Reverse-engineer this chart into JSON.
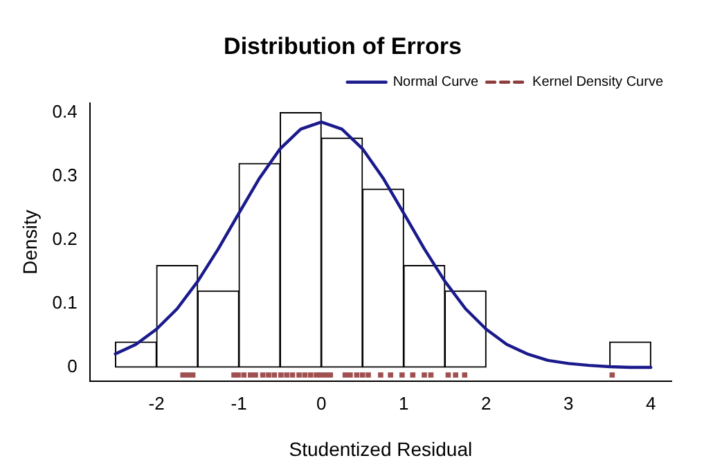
{
  "chart_data": {
    "type": "histogram",
    "title": "Distribution of Errors",
    "xlabel": "Studentized Residual",
    "ylabel": "Density",
    "bins": [
      -2.5,
      -2,
      -1.5,
      -1,
      -0.5,
      0,
      0.5,
      1,
      1.5,
      2,
      2.5,
      3,
      3.5,
      4
    ],
    "values": [
      0.04,
      0.16,
      0.12,
      0.32,
      0.4,
      0.36,
      0.28,
      0.16,
      0.12,
      0,
      0,
      0,
      0.04
    ],
    "color": "#ffffff",
    "series": [
      {
        "name": "Normal Curve",
        "type": "line",
        "color": "#1a1a8c",
        "x": [
          -2.5,
          -2.25,
          -2,
          -1.75,
          -1.5,
          -1.25,
          -1,
          -0.75,
          -0.5,
          -0.25,
          0,
          0.25,
          0.5,
          0.75,
          1,
          1.25,
          1.5,
          1.75,
          2,
          2.25,
          2.5,
          2.75,
          3,
          3.25,
          3.5,
          3.75,
          4
        ],
        "values": [
          0.021,
          0.036,
          0.06,
          0.092,
          0.135,
          0.186,
          0.242,
          0.297,
          0.343,
          0.374,
          0.385,
          0.374,
          0.343,
          0.297,
          0.242,
          0.186,
          0.135,
          0.092,
          0.06,
          0.036,
          0.021,
          0.011,
          0.006,
          0.003,
          0.001,
          0,
          0
        ]
      },
      {
        "name": "Kernel Density Curve",
        "type": "line",
        "color": "#8b3a3a",
        "line_style": "dashed"
      },
      {
        "type": "scatter",
        "color": "#a05050",
        "marker": "square",
        "x": [
          -1.68,
          -1.62,
          -1.56,
          -1.06,
          -1.01,
          -0.94,
          -0.86,
          -0.8,
          -0.71,
          -0.64,
          -0.57,
          -0.49,
          -0.42,
          -0.35,
          -0.27,
          -0.2,
          -0.13,
          -0.06,
          -0.01,
          0.05,
          0.11,
          0.29,
          0.35,
          0.43,
          0.5,
          0.57,
          0.72,
          0.84,
          0.98,
          1.11,
          1.25,
          1.33,
          1.54,
          1.63,
          1.74,
          3.53
        ],
        "values": [
          -0.012,
          -0.012,
          -0.012,
          -0.012,
          -0.012,
          -0.012,
          -0.012,
          -0.012,
          -0.012,
          -0.012,
          -0.012,
          -0.012,
          -0.012,
          -0.012,
          -0.012,
          -0.012,
          -0.012,
          -0.012,
          -0.012,
          -0.012,
          -0.012,
          -0.012,
          -0.012,
          -0.012,
          -0.012,
          -0.012,
          -0.012,
          -0.012,
          -0.012,
          -0.012,
          -0.012,
          -0.012,
          -0.012,
          -0.012,
          -0.012,
          -0.012
        ]
      }
    ],
    "xlim": [
      -2.81,
      4.25
    ],
    "xticks": [
      -2,
      -1,
      0,
      1,
      2,
      3,
      4
    ],
    "ylim": [
      -0.022,
      0.415
    ],
    "yticks": [
      0,
      0.1,
      0.2,
      0.3,
      0.4
    ],
    "legend": "top right",
    "grid": false
  }
}
